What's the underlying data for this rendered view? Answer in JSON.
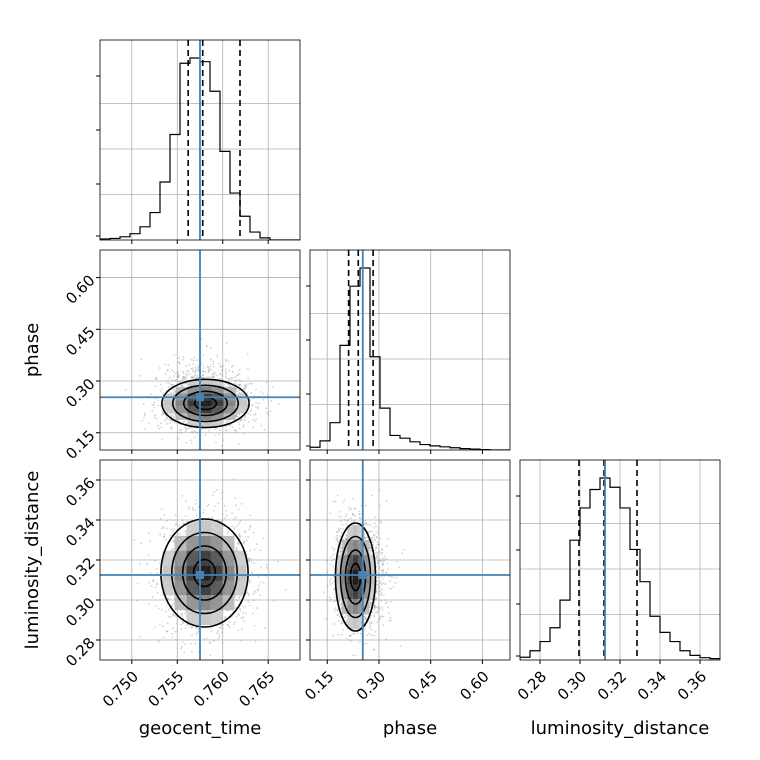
{
  "chart_data": {
    "type": "corner",
    "grid": true,
    "parameters": [
      {
        "name": "geocent_time",
        "xlabel": "geocent_time",
        "ylabel": "",
        "range": [
          0.7465,
          0.7685
        ],
        "ticks": [
          0.75,
          0.755,
          0.76,
          0.765
        ],
        "tick_labels": [
          "0.750",
          "0.755",
          "0.760",
          "0.765"
        ],
        "truth": 0.7575
      },
      {
        "name": "phase",
        "xlabel": "phase",
        "ylabel": "phase",
        "range": [
          0.1,
          0.68
        ],
        "ticks": [
          0.15,
          0.3,
          0.45,
          0.6
        ],
        "tick_labels": [
          "0.15",
          "0.30",
          "0.45",
          "0.60"
        ],
        "truth": 0.253
      },
      {
        "name": "luminosity_distance",
        "xlabel": "luminosity_distance",
        "ylabel": "luminosity_distance",
        "range": [
          0.27,
          0.37
        ],
        "ticks": [
          0.28,
          0.3,
          0.32,
          0.34,
          0.36
        ],
        "tick_labels": [
          "0.28",
          "0.30",
          "0.32",
          "0.34",
          "0.36"
        ],
        "truth": 0.3125
      }
    ],
    "histograms": [
      {
        "parameter": "geocent_time",
        "bin_edges": [
          0.7465,
          0.7476,
          0.7487,
          0.7498,
          0.7509,
          0.752,
          0.7531,
          0.7542,
          0.7553,
          0.7564,
          0.7575,
          0.7586,
          0.7597,
          0.7608,
          0.7619,
          0.763,
          0.7641,
          0.7652,
          0.7663,
          0.7674,
          0.7685
        ],
        "counts": [
          2,
          3,
          6,
          12,
          25,
          52,
          110,
          200,
          335,
          345,
          338,
          282,
          168,
          89,
          45,
          15,
          4,
          0,
          0,
          0
        ],
        "quantiles": [
          0.7562,
          0.7578,
          0.7619
        ]
      },
      {
        "parameter": "phase",
        "bin_edges": [
          0.1,
          0.129,
          0.158,
          0.187,
          0.216,
          0.245,
          0.274,
          0.303,
          0.332,
          0.361,
          0.39,
          0.419,
          0.448,
          0.477,
          0.506,
          0.535,
          0.564,
          0.593,
          0.622,
          0.651,
          0.68
        ],
        "counts": [
          6,
          20,
          60,
          230,
          360,
          400,
          205,
          92,
          32,
          26,
          18,
          12,
          9,
          7,
          5,
          3,
          2,
          1,
          0,
          0
        ],
        "quantiles": [
          0.212,
          0.24,
          0.283
        ]
      },
      {
        "parameter": "luminosity_distance",
        "bin_edges": [
          0.27,
          0.275,
          0.28,
          0.285,
          0.29,
          0.295,
          0.3,
          0.305,
          0.31,
          0.315,
          0.32,
          0.325,
          0.33,
          0.335,
          0.34,
          0.345,
          0.35,
          0.355,
          0.36,
          0.365,
          0.37
        ],
        "counts": [
          6,
          20,
          40,
          70,
          130,
          260,
          330,
          370,
          395,
          375,
          330,
          240,
          170,
          95,
          60,
          40,
          20,
          10,
          5,
          3
        ],
        "quantiles": [
          0.2995,
          0.312,
          0.3285
        ]
      }
    ],
    "contours_2d": [
      {
        "x": "geocent_time",
        "y": "phase",
        "center": [
          0.7581,
          0.235
        ],
        "sigma": [
          0.0024,
          0.035
        ],
        "truth": [
          0.7575,
          0.253
        ]
      },
      {
        "x": "geocent_time",
        "y": "luminosity_distance",
        "center": [
          0.758,
          0.3135
        ],
        "sigma": [
          0.0024,
          0.0135
        ],
        "truth": [
          0.7575,
          0.3125
        ]
      },
      {
        "x": "phase",
        "y": "luminosity_distance",
        "center": [
          0.232,
          0.3115
        ],
        "sigma": [
          0.029,
          0.0135
        ],
        "truth": [
          0.253,
          0.3125
        ]
      }
    ],
    "colors": {
      "hist": "#000000",
      "truth": "#4682b4",
      "grid": "#b0b0b0",
      "scatter": "#808080"
    }
  }
}
